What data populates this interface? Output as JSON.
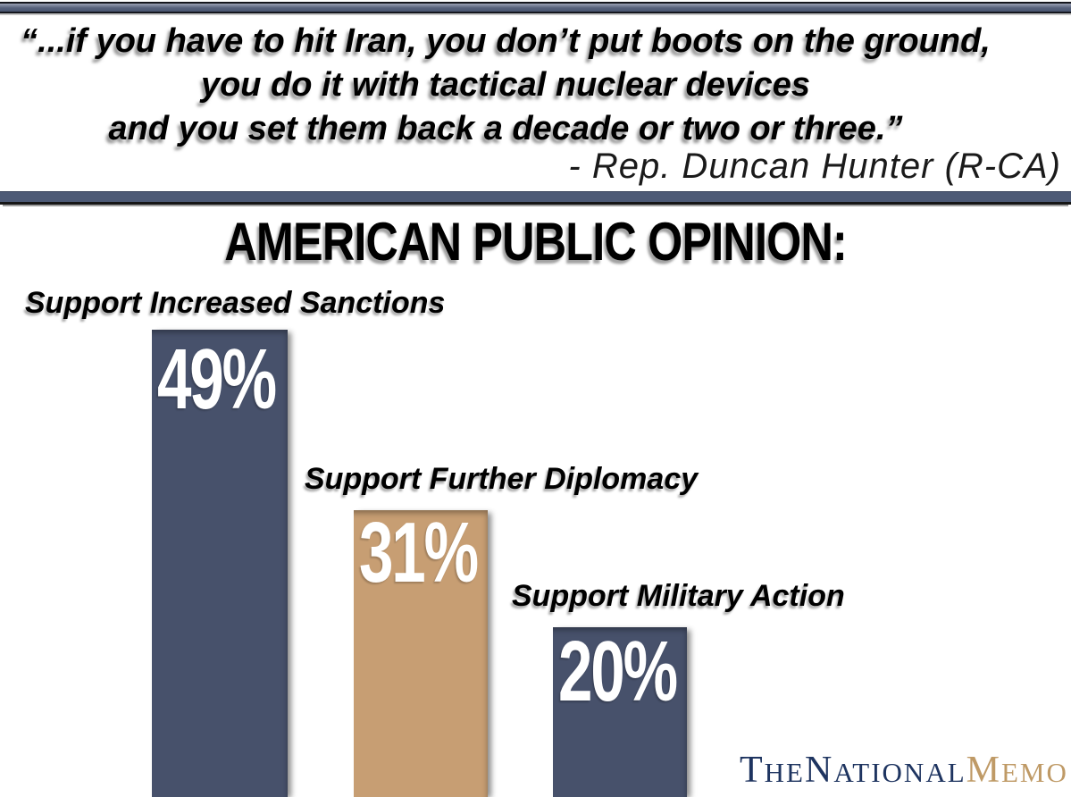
{
  "quote": {
    "lines": [
      "“...if you have to hit Iran, you don’t put boots on the ground,",
      "you do it with tactical nuclear devices",
      "and you set them back a decade or two or three.”"
    ],
    "attribution": "- Rep. Duncan Hunter (R-CA)"
  },
  "title": "AMERICAN PUBLIC OPINION:",
  "chart_data": {
    "type": "bar",
    "title": "AMERICAN PUBLIC OPINION:",
    "categories": [
      "Support Increased Sanctions",
      "Support Further Diplomacy",
      "Support Military Action"
    ],
    "values": [
      49,
      31,
      20
    ],
    "value_labels": [
      "49%",
      "31%",
      "20%"
    ],
    "unit": "percent",
    "colors": [
      "#47516B",
      "#C79E73",
      "#47516B"
    ],
    "orientation": "vertical",
    "axes_visible": false,
    "legend": false,
    "ylim": [
      0,
      100
    ],
    "layout_note": "bars are cropped by the bottom edge of the frame; value labels printed in white inside bar tops"
  },
  "logo": {
    "t": "T",
    "he": "HE",
    "n": "N",
    "ational": "ATIONAL",
    "m": "M",
    "emo": "EMO",
    "color_primary": "#1E3460",
    "color_accent": "#BF9A66"
  },
  "colors": {
    "background": "#FFFFFF",
    "text": "#000000",
    "divider_blue": "#4D5A76",
    "bar_blue": "#47516B",
    "bar_tan": "#C79E73"
  }
}
